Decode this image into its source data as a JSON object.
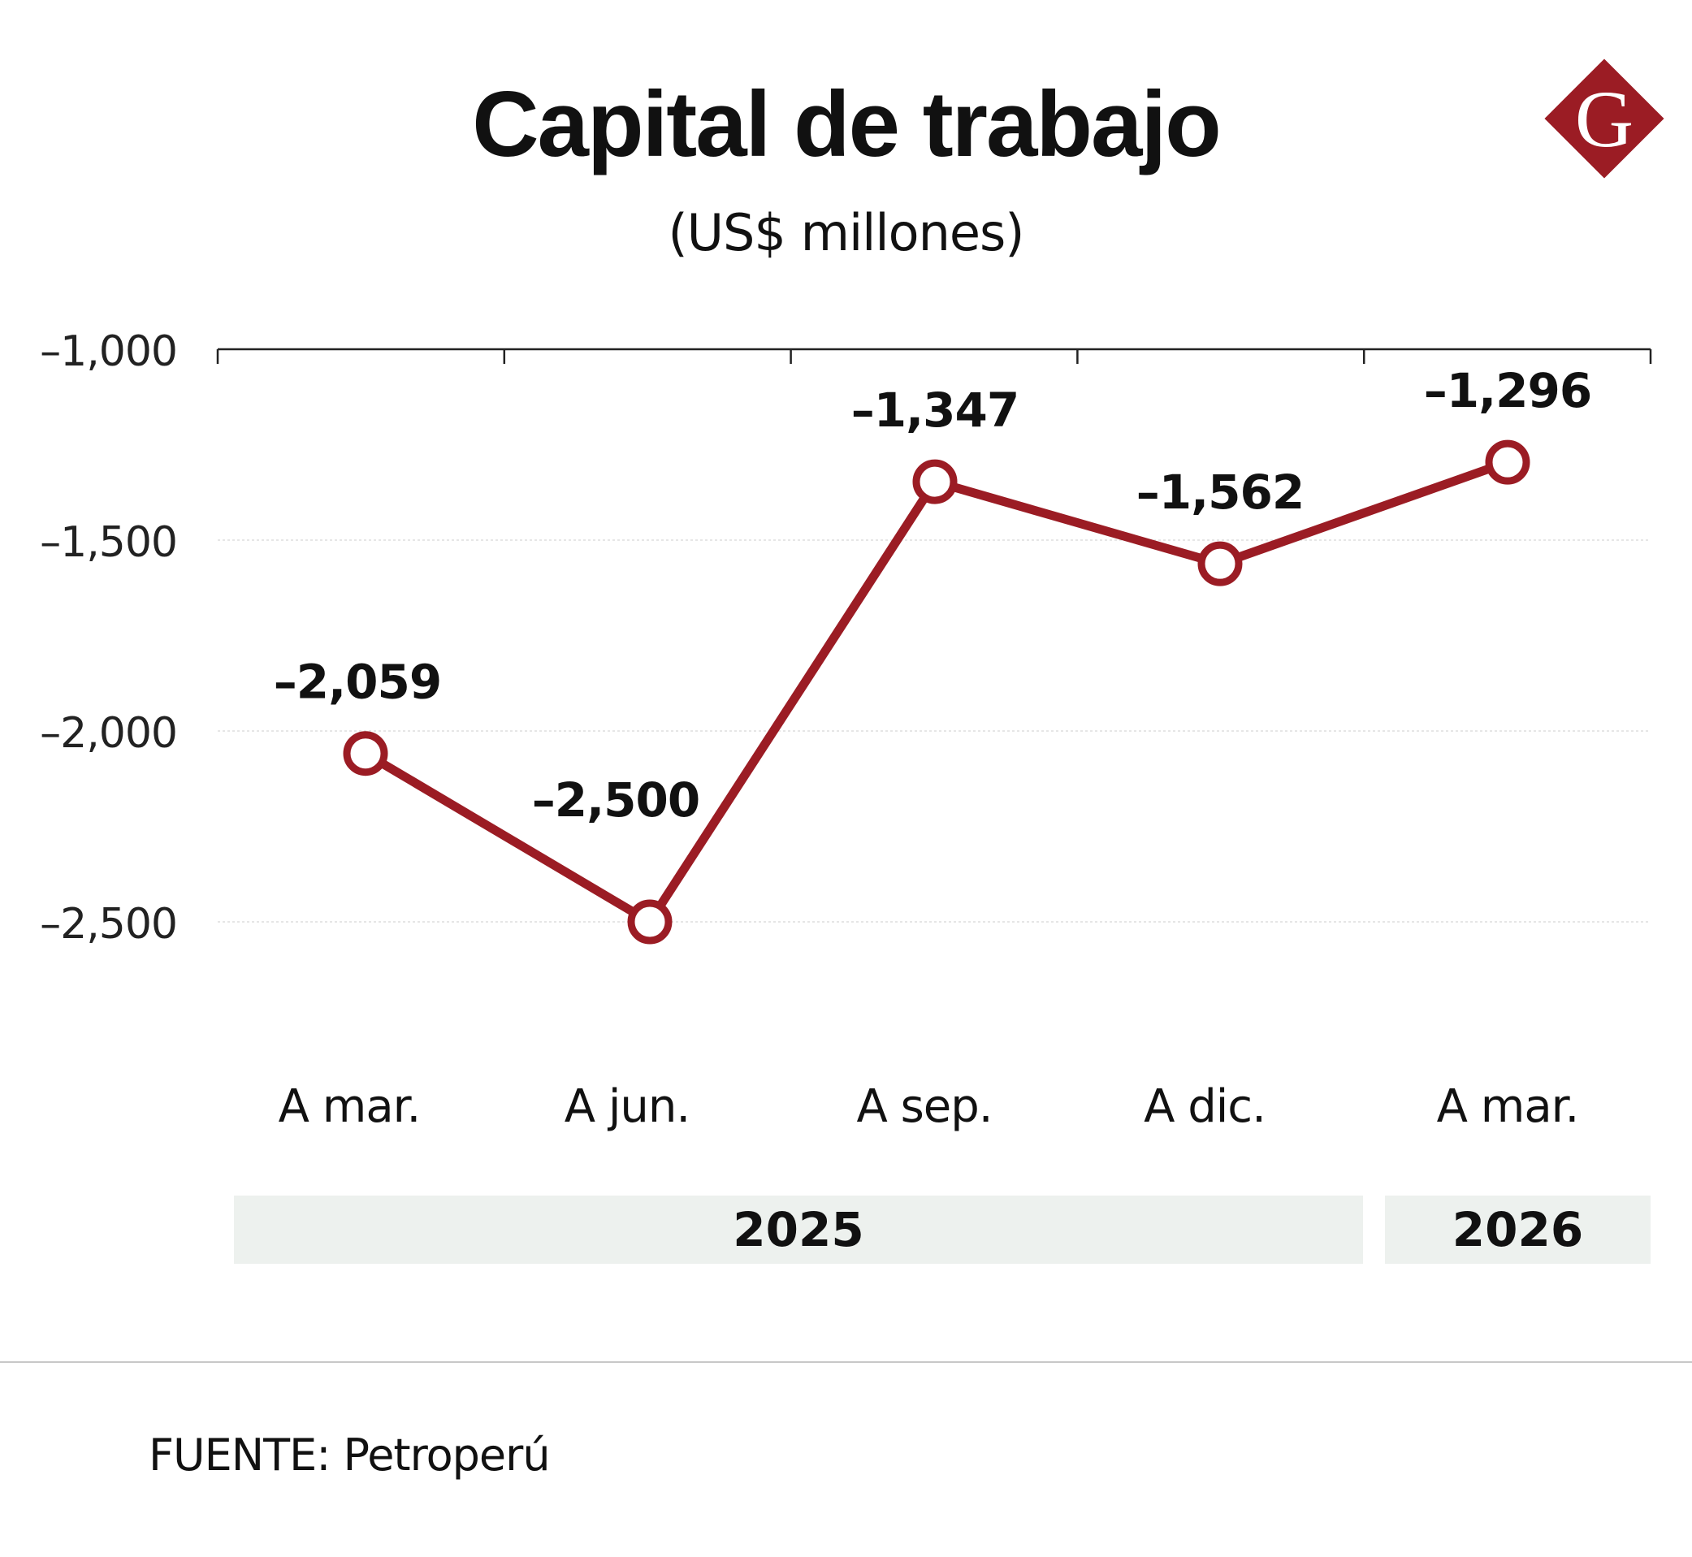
{
  "title": "Capital de trabajo",
  "subtitle": "(US$ millones)",
  "logo": {
    "letter": "G",
    "color": "#9b1c24"
  },
  "source": "FUENTE: Petroperú",
  "colors": {
    "line": "#9b1c24",
    "marker_fill": "#ffffff",
    "gridline": "#dddddd",
    "axis": "#222222",
    "year_band": "#edf1ee"
  },
  "chart_data": {
    "type": "line",
    "categories": [
      "A mar.",
      "A jun.",
      "A sep.",
      "A dic.",
      "A mar."
    ],
    "series": [
      {
        "values": [
          -2059,
          -2500,
          -1347,
          -1562,
          -1296
        ],
        "data_labels": [
          "–2,059",
          "–2,500",
          "–1,347",
          "–1,562",
          "–1,296"
        ]
      }
    ],
    "yticks": [
      -1000,
      -1500,
      -2000,
      -2500
    ],
    "ytick_labels": [
      "–1,000",
      "–1,500",
      "–2,000",
      "–2,500"
    ],
    "ylim": [
      -2500,
      -1000
    ],
    "grid": true,
    "year_groups": [
      {
        "label": "2025",
        "start": 0,
        "end": 3
      },
      {
        "label": "2026",
        "start": 4,
        "end": 4
      }
    ]
  }
}
